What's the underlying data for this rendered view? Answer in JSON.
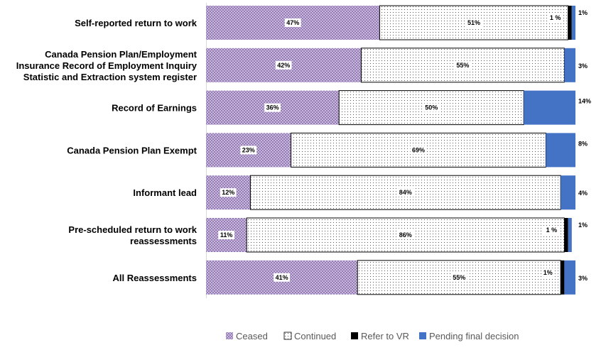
{
  "chart_data": {
    "type": "bar",
    "orientation": "horizontal",
    "stacked": true,
    "normalized_percent": true,
    "categories": [
      [
        "Self-reported return to work"
      ],
      [
        "Canada Pension Plan/Employment",
        "Insurance Record of Employment Inquiry",
        "Statistic and Extraction system register"
      ],
      [
        "Record of Earnings"
      ],
      [
        "Canada Pension Plan Exempt"
      ],
      [
        "Informant lead"
      ],
      [
        "Pre-scheduled return to work",
        "reassessments"
      ],
      [
        "All Reassessments"
      ]
    ],
    "series": [
      {
        "name": "Ceased",
        "color": "#9B84B8",
        "pattern": "crosshatch",
        "values": [
          47,
          42,
          36,
          23,
          12,
          11,
          41
        ],
        "labels": [
          "47%",
          "42%",
          "36%",
          "23%",
          "12%",
          "11%",
          "41%"
        ]
      },
      {
        "name": "Continued",
        "color": "#000000",
        "pattern": "dots",
        "values": [
          51,
          55,
          50,
          69,
          84,
          86,
          55
        ],
        "labels": [
          "51%",
          "55%",
          "50%",
          "69%",
          "84%",
          "86%",
          "55%"
        ]
      },
      {
        "name": "Refer to VR",
        "color": "#000000",
        "pattern": "solid",
        "values": [
          1,
          0,
          0,
          0,
          0,
          1,
          1
        ],
        "labels": [
          "1 %",
          "",
          "",
          "",
          "",
          "1 %",
          "1%"
        ]
      },
      {
        "name": "Pending final decision",
        "color": "#4472C4",
        "pattern": "solid",
        "values": [
          1,
          3,
          14,
          8,
          4,
          1,
          3
        ],
        "labels": [
          "1%",
          "3%",
          "14%",
          "8%",
          "4%",
          "1%",
          "3%"
        ]
      }
    ],
    "xlim": [
      0,
      100
    ],
    "legend_position": "bottom",
    "grid": false
  }
}
